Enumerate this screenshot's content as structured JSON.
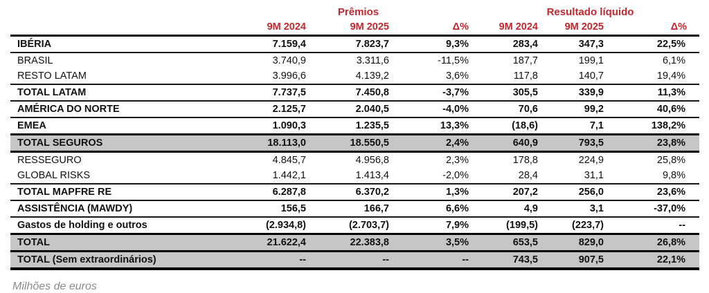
{
  "table": {
    "group_headers": [
      "Prêmios",
      "Resultado líquido"
    ],
    "columns": [
      "9M 2024",
      "9M 2025",
      "Δ%",
      "9M 2024",
      "9M 2025",
      "Δ%"
    ],
    "rows": [
      {
        "label": "IBÉRIA",
        "values": [
          "7.159,4",
          "7.823,7",
          "9,3%",
          "283,4",
          "347,3",
          "22,5%"
        ],
        "bold": true,
        "shaded": false,
        "border_bottom": "medium"
      },
      {
        "label": "BRASIL",
        "values": [
          "3.740,9",
          "3.311,6",
          "-11,5%",
          "187,7",
          "199,1",
          "6,1%"
        ],
        "bold": false,
        "shaded": false,
        "border_bottom": "none"
      },
      {
        "label": "RESTO LATAM",
        "values": [
          "3.996,6",
          "4.139,2",
          "3,6%",
          "117,8",
          "140,7",
          "19,4%"
        ],
        "bold": false,
        "shaded": false,
        "border_bottom": "medium"
      },
      {
        "label": "TOTAL LATAM",
        "values": [
          "7.737,5",
          "7.450,8",
          "-3,7%",
          "305,5",
          "339,9",
          "11,3%"
        ],
        "bold": true,
        "shaded": false,
        "border_bottom": "medium"
      },
      {
        "label": "AMÉRICA DO NORTE",
        "values": [
          "2.125,7",
          "2.040,5",
          "-4,0%",
          "70,6",
          "99,2",
          "40,6%"
        ],
        "bold": true,
        "shaded": false,
        "border_bottom": "medium"
      },
      {
        "label": "EMEA",
        "values": [
          "1.090,3",
          "1.235,5",
          "13,3%",
          "(18,6)",
          "7,1",
          "138,2%"
        ],
        "bold": true,
        "shaded": false,
        "border_bottom": "thick"
      },
      {
        "label": "TOTAL SEGUROS",
        "values": [
          "18.113,0",
          "18.550,5",
          "2,4%",
          "640,9",
          "793,5",
          "23,8%"
        ],
        "bold": true,
        "shaded": true,
        "border_bottom": "thick"
      },
      {
        "label": "RESSEGURO",
        "values": [
          "4.845,7",
          "4.956,8",
          "2,3%",
          "178,8",
          "224,9",
          "25,8%"
        ],
        "bold": false,
        "shaded": false,
        "border_bottom": "none"
      },
      {
        "label": "GLOBAL RISKS",
        "values": [
          "1.442,1",
          "1.413,4",
          "-2,0%",
          "28,4",
          "31,1",
          "9,8%"
        ],
        "bold": false,
        "shaded": false,
        "border_bottom": "medium"
      },
      {
        "label": "TOTAL MAPFRE RE",
        "values": [
          "6.287,8",
          "6.370,2",
          "1,3%",
          "207,2",
          "256,0",
          "23,6%"
        ],
        "bold": true,
        "shaded": false,
        "border_bottom": "medium"
      },
      {
        "label": "ASSISTÊNCIA (MAWDY)",
        "values": [
          "156,5",
          "166,7",
          "6,6%",
          "4,9",
          "3,1",
          "-37,0%"
        ],
        "bold": true,
        "shaded": false,
        "border_bottom": "medium"
      },
      {
        "label": "Gastos de holding e outros",
        "values": [
          "(2.934,8)",
          "(2.703,7)",
          "7,9%",
          "(199,5)",
          "(223,7)",
          "--"
        ],
        "bold": true,
        "shaded": false,
        "border_bottom": "thick"
      },
      {
        "label": "TOTAL",
        "values": [
          "21.622,4",
          "22.383,8",
          "3,5%",
          "653,5",
          "829,0",
          "26,8%"
        ],
        "bold": true,
        "shaded": true,
        "border_bottom": "thick"
      },
      {
        "label": "TOTAL (Sem extraordinários)",
        "values": [
          "--",
          "--",
          "--",
          "743,5",
          "907,5",
          "22,1%"
        ],
        "bold": true,
        "shaded": true,
        "border_bottom": "xthick"
      }
    ]
  },
  "footnote": "Milhões de euros",
  "colors": {
    "accent_red": "#C2272D",
    "shaded_row_bg": "#C6C6C6",
    "footnote_gray": "#8C8C8C"
  }
}
